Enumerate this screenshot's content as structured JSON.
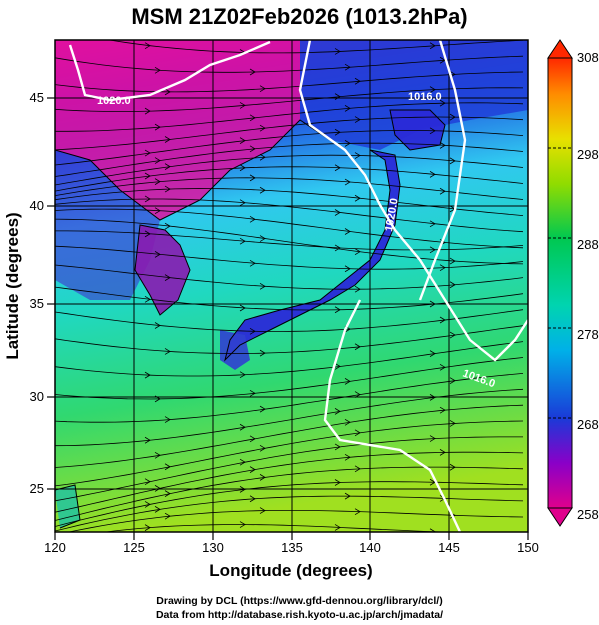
{
  "title": "MSM 21Z02Feb2026 (1013.2hPa)",
  "x_axis": {
    "label": "Longitude (degrees)",
    "ticks": [
      "120",
      "125",
      "130",
      "135",
      "140",
      "145",
      "150"
    ],
    "range": [
      120,
      150
    ]
  },
  "y_axis": {
    "label": "Latitude  (degrees)",
    "ticks": [
      "25",
      "30",
      "35",
      "40",
      "45"
    ],
    "range": [
      22.5,
      47.8
    ]
  },
  "colorbar": {
    "ticks": [
      "258",
      "268",
      "278",
      "288",
      "298",
      "308"
    ],
    "range": [
      258,
      308
    ],
    "colors": [
      "#e0008c",
      "#6a00c8",
      "#1a3ad8",
      "#00a8e0",
      "#00d0b0",
      "#00c850",
      "#7ad800",
      "#d8e000",
      "#ff9a00",
      "#ff3000"
    ]
  },
  "isobars": [
    {
      "label": "1020.0",
      "value": 1020.0
    },
    {
      "label": "1016.0",
      "value": 1016.0
    },
    {
      "label": "1020.0",
      "value": 1020.0
    },
    {
      "label": "1016.0",
      "value": 1016.0
    }
  ],
  "credit": {
    "line1": "Drawing by DCL (https://www.gfd-dennou.org/library/dcl/)",
    "line2": "Data from http://database.rish.kyoto-u.ac.jp/arch/jmadata/"
  }
}
